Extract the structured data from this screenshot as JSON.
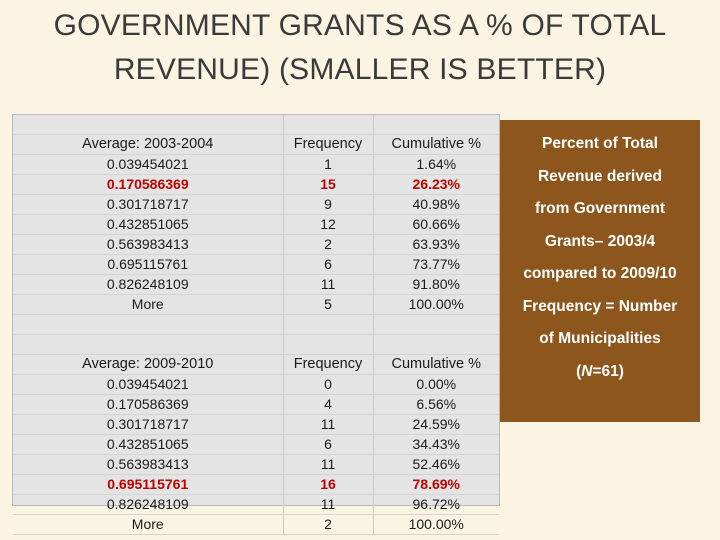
{
  "title": {
    "line1": "GOVERNMENT GRANTS AS A % OF TOTAL",
    "line2": "REVENUE) (SMALLER IS BETTER)"
  },
  "table": {
    "section1": {
      "header": [
        "Average: 2003-2004",
        "Frequency",
        "Cumulative %"
      ],
      "rows": [
        [
          "0.039454021",
          "1",
          "1.64%"
        ],
        [
          "0.170586369",
          "15",
          "26.23%"
        ],
        [
          "0.301718717",
          "9",
          "40.98%"
        ],
        [
          "0.432851065",
          "12",
          "60.66%"
        ],
        [
          "0.563983413",
          "2",
          "63.93%"
        ],
        [
          "0.695115761",
          "6",
          "73.77%"
        ],
        [
          "0.826248109",
          "11",
          "91.80%"
        ],
        [
          "More",
          "5",
          "100.00%"
        ]
      ],
      "highlight_row": 1
    },
    "section2": {
      "header": [
        "Average:  2009-2010",
        "Frequency",
        "Cumulative %"
      ],
      "rows": [
        [
          "0.039454021",
          "0",
          "0.00%"
        ],
        [
          "0.170586369",
          "4",
          "6.56%"
        ],
        [
          "0.301718717",
          "11",
          "24.59%"
        ],
        [
          "0.432851065",
          "6",
          "34.43%"
        ],
        [
          "0.563983413",
          "11",
          "52.46%"
        ],
        [
          "0.695115761",
          "16",
          "78.69%"
        ],
        [
          "0.826248109",
          "11",
          "96.72%"
        ],
        [
          "More",
          "2",
          "100.00%"
        ]
      ],
      "highlight_row": 5
    },
    "highlight_color": "#c00000"
  },
  "info_box": {
    "lines": [
      "Percent of Total",
      "Revenue derived",
      "from Government",
      "Grants– 2003/4",
      "compared to 2009/10",
      "Frequency = Number",
      "of Municipalities"
    ],
    "n_prefix": "(",
    "n_var": "N",
    "n_suffix": "=61)",
    "background": "#8c561c"
  }
}
